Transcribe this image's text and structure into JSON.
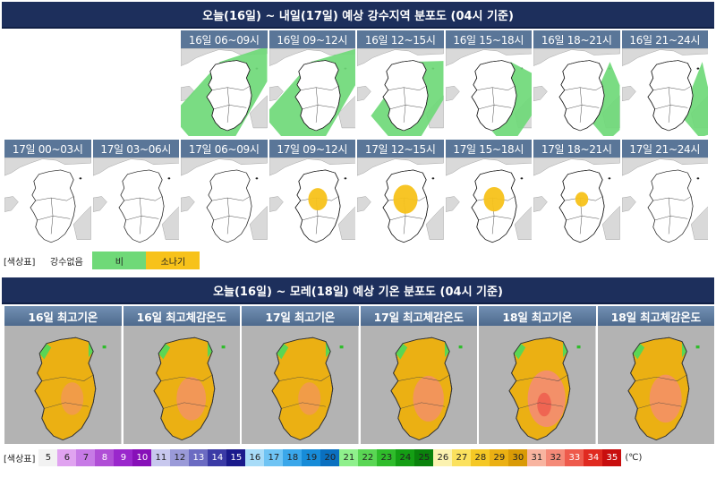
{
  "rain_section": {
    "title": "오늘(16일) ~ 내일(17일) 예상 강수지역 분포도 (04시 기준)",
    "row1": [
      {
        "label": "16일 06~09시",
        "rain": 0.9,
        "shower": 0
      },
      {
        "label": "16일 09~12시",
        "rain": 0.85,
        "shower": 0
      },
      {
        "label": "16일 12~15시",
        "rain": 0.6,
        "shower": 0
      },
      {
        "label": "16일 15~18시",
        "rain": 0.35,
        "shower": 0
      },
      {
        "label": "16일 18~21시",
        "rain": 0.1,
        "shower": 0
      },
      {
        "label": "16일 21~24시",
        "rain": 0.02,
        "shower": 0
      }
    ],
    "row2": [
      {
        "label": "17일 00~03시",
        "rain": 0,
        "shower": 0
      },
      {
        "label": "17일 03~06시",
        "rain": 0,
        "shower": 0
      },
      {
        "label": "17일 06~09시",
        "rain": 0,
        "shower": 0
      },
      {
        "label": "17일 09~12시",
        "rain": 0,
        "shower": 0.5
      },
      {
        "label": "17일 12~15시",
        "rain": 0,
        "shower": 0.8
      },
      {
        "label": "17일 15~18시",
        "rain": 0,
        "shower": 0.6
      },
      {
        "label": "17일 18~21시",
        "rain": 0,
        "shower": 0.15
      },
      {
        "label": "17일 21~24시",
        "rain": 0,
        "shower": 0
      }
    ],
    "legend": {
      "title": "[색상표]",
      "items": [
        {
          "label": "강수없음",
          "color": "#ffffff"
        },
        {
          "label": "비",
          "color": "#6fd978"
        },
        {
          "label": "소나기",
          "color": "#f7c21a"
        }
      ]
    }
  },
  "temp_section": {
    "title": "오늘(16일) ~ 모레(18일) 예상 기온 분포도 (04시 기준)",
    "panels": [
      {
        "label": "16일 최고기온",
        "heat": 0.3
      },
      {
        "label": "16일 최고체감온도",
        "heat": 0.55
      },
      {
        "label": "17일 최고기온",
        "heat": 0.3
      },
      {
        "label": "17일 최고체감온도",
        "heat": 0.6
      },
      {
        "label": "18일 최고기온",
        "heat": 0.85
      },
      {
        "label": "18일 최고체감온도",
        "heat": 0.65
      }
    ],
    "legend": {
      "title": "[색상표]",
      "unit": "(℃)",
      "scale": [
        {
          "v": "5",
          "c": "#f2f2f2"
        },
        {
          "v": "6",
          "c": "#e0a3f0"
        },
        {
          "v": "7",
          "c": "#c77ae6"
        },
        {
          "v": "8",
          "c": "#b04ed6"
        },
        {
          "v": "9",
          "c": "#9a27cc"
        },
        {
          "v": "10",
          "c": "#8710b8"
        },
        {
          "v": "11",
          "c": "#c8c8ee"
        },
        {
          "v": "12",
          "c": "#9a9ad8"
        },
        {
          "v": "13",
          "c": "#6b6bc2"
        },
        {
          "v": "14",
          "c": "#3b3ba6"
        },
        {
          "v": "15",
          "c": "#1a1a8c"
        },
        {
          "v": "16",
          "c": "#a8dcf8"
        },
        {
          "v": "17",
          "c": "#6fc4f4"
        },
        {
          "v": "18",
          "c": "#3aa7ea"
        },
        {
          "v": "19",
          "c": "#178cd8"
        },
        {
          "v": "20",
          "c": "#0a70c0"
        },
        {
          "v": "21",
          "c": "#8ff08c"
        },
        {
          "v": "22",
          "c": "#5ad654"
        },
        {
          "v": "23",
          "c": "#2fbc2b"
        },
        {
          "v": "24",
          "c": "#149e14"
        },
        {
          "v": "25",
          "c": "#0a820c"
        },
        {
          "v": "26",
          "c": "#fbf2b0"
        },
        {
          "v": "27",
          "c": "#fbe15e"
        },
        {
          "v": "28",
          "c": "#f5c825"
        },
        {
          "v": "29",
          "c": "#ebb013"
        },
        {
          "v": "30",
          "c": "#d99a06"
        },
        {
          "v": "31",
          "c": "#f8b4a0"
        },
        {
          "v": "32",
          "c": "#f58a78"
        },
        {
          "v": "33",
          "c": "#ee5a4c"
        },
        {
          "v": "34",
          "c": "#e02a20"
        },
        {
          "v": "35",
          "c": "#c80e0e"
        }
      ]
    }
  },
  "colors": {
    "header_bg": "#1d2f5c",
    "panel_label_bg": "#5a7698",
    "land": "#ffffff",
    "sea": "#ffffff",
    "neighbor_land": "#d9d9d9",
    "rain": "#6fd978",
    "shower": "#f7c21a",
    "temp_base": "#ebb013",
    "temp_hot": "#f58a78",
    "temp_cool": "#5ad654"
  }
}
